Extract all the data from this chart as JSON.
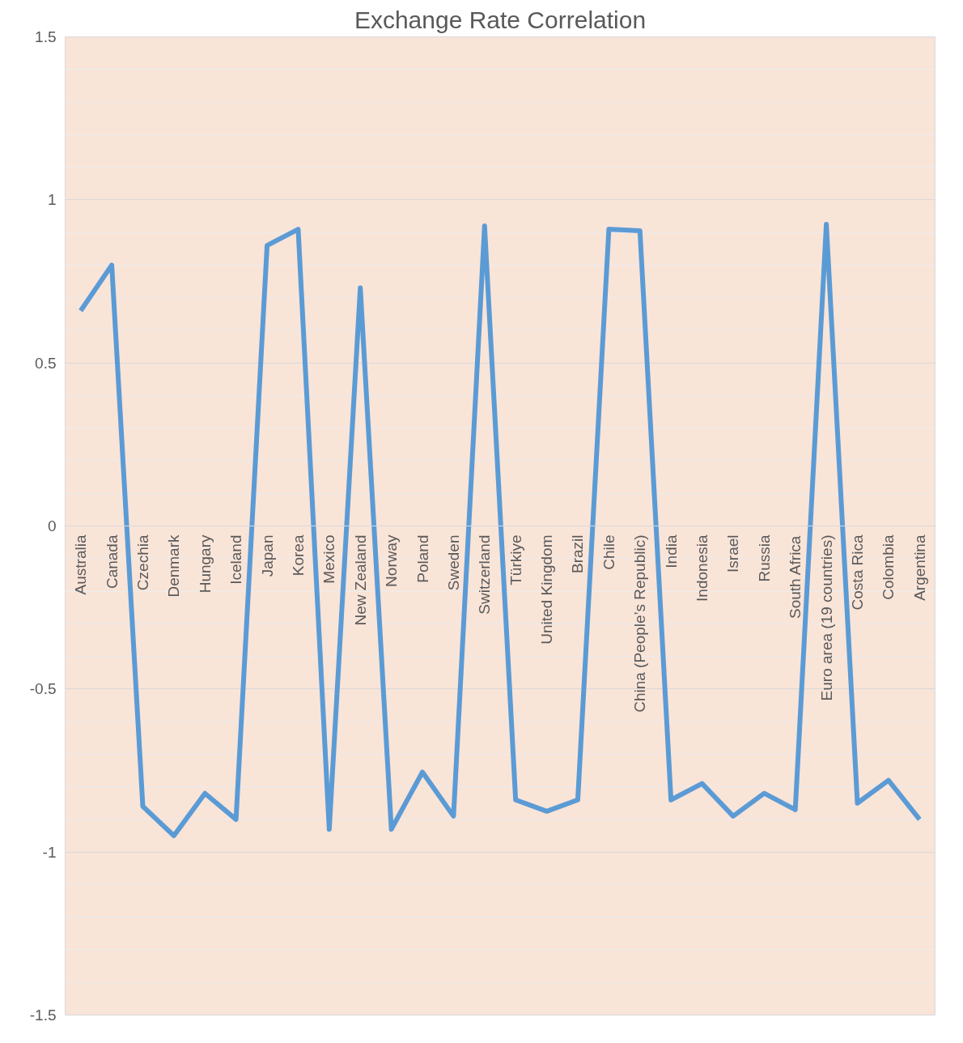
{
  "chart_data": {
    "type": "line",
    "title": "Exchange Rate Correlation",
    "categories": [
      "Australia",
      "Canada",
      "Czechia",
      "Denmark",
      "Hungary",
      "Iceland",
      "Japan",
      "Korea",
      "Mexico",
      "New Zealand",
      "Norway",
      "Poland",
      "Sweden",
      "Switzerland",
      "Türkiye",
      "United Kingdom",
      "Brazil",
      "Chile",
      "China (People’s Republic)",
      "India",
      "Indonesia",
      "Israel",
      "Russia",
      "South Africa",
      "Euro area (19 countries)",
      "Costa Rica",
      "Colombia",
      "Argentina"
    ],
    "series": [
      {
        "color": "#5b9bd5",
        "values": [
          0.66,
          0.8,
          -0.86,
          -0.95,
          -0.82,
          -0.9,
          0.86,
          0.91,
          -0.93,
          0.73,
          -0.93,
          -0.755,
          -0.89,
          0.92,
          -0.84,
          -0.875,
          -0.84,
          0.91,
          0.905,
          -0.84,
          -0.79,
          -0.89,
          -0.82,
          -0.87,
          0.925,
          -0.85,
          -0.78,
          -0.9
        ]
      }
    ],
    "ylim": [
      -1.5,
      1.5
    ],
    "yticks": [
      -1.5,
      -1,
      -0.5,
      0,
      0.5,
      1,
      1.5
    ],
    "grid": "y",
    "marker": "none",
    "line_style": "solid"
  }
}
